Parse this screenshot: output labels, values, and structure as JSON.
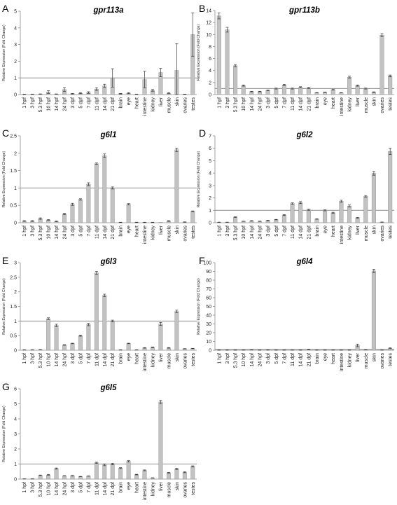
{
  "y_axis_label": "Relative Expression (Fold Change)",
  "colors": {
    "bar": "#c2c2c2",
    "bar_edge": "#8a8a8a",
    "ref_line": "#8c8c8c",
    "axis": "#8c8c8c"
  },
  "chart_data": [
    {
      "type": "bar",
      "panel": "A",
      "title": "gpr113a",
      "ylabel": "Relative Expression (Fold Change)",
      "ylim": [
        0,
        5
      ],
      "yticks": [
        0,
        1,
        2,
        3,
        4,
        5
      ],
      "reference_line": 1,
      "categories": [
        "1 hpf",
        "3 hpf",
        "5.3 hpf",
        "10 hpf",
        "14 hpf",
        "24 hpf",
        "3 dpf",
        "5 dpf",
        "7 dpf",
        "11 dpf",
        "14 dpf",
        "21 dpf",
        "brain",
        "eye",
        "heart",
        "intestine",
        "kidney",
        "liver",
        "muscle",
        "skin",
        "ovaries",
        "testes"
      ],
      "values": [
        0.02,
        0.02,
        0.03,
        0.15,
        0.03,
        0.3,
        0.05,
        0.08,
        0.12,
        0.33,
        0.52,
        1.0,
        0.05,
        0.08,
        0.02,
        0.9,
        0.25,
        1.32,
        0.08,
        1.45,
        0.02,
        3.6
      ],
      "errors": [
        0.01,
        0.01,
        0.01,
        0.08,
        0.01,
        0.12,
        0.02,
        0.03,
        0.05,
        0.08,
        0.1,
        0.55,
        0.02,
        0.03,
        0.01,
        0.5,
        0.05,
        0.25,
        0.03,
        1.6,
        0.01,
        1.3
      ]
    },
    {
      "type": "bar",
      "panel": "B",
      "title": "gpr113b",
      "ylabel": "Relative Expression (Fold Change)",
      "ylim": [
        0,
        14
      ],
      "yticks": [
        0,
        2,
        4,
        6,
        8,
        10,
        12,
        14
      ],
      "reference_line": 1,
      "categories": [
        "1 hpf",
        "3 hpf",
        "5.3 hpf",
        "10 hpf",
        "14 hpf",
        "24 hpf",
        "3 dpf",
        "5 dpf",
        "7 dpf",
        "11 dpf",
        "14 dpf",
        "21 dpf",
        "brain",
        "eye",
        "heart",
        "intestine",
        "kidney",
        "liver",
        "muscle",
        "skin",
        "ovaries",
        "testes"
      ],
      "values": [
        13.1,
        10.8,
        4.8,
        1.5,
        0.5,
        0.5,
        0.7,
        1.0,
        1.6,
        1.0,
        1.2,
        1.1,
        0.3,
        0.4,
        0.8,
        0.3,
        2.9,
        1.5,
        1.0,
        0.4,
        9.9,
        3.1
      ],
      "errors": [
        0.5,
        0.4,
        0.2,
        0.1,
        0.05,
        0.05,
        0.05,
        0.08,
        0.1,
        0.08,
        0.1,
        0.1,
        0.03,
        0.03,
        0.05,
        0.03,
        0.15,
        0.1,
        0.08,
        0.05,
        0.25,
        0.15
      ]
    },
    {
      "type": "bar",
      "panel": "C",
      "title": "g6l1",
      "ylabel": "Relative Expression (Fold Change)",
      "ylim": [
        0,
        2.5
      ],
      "yticks": [
        "0",
        "0.5",
        "1",
        "1.5",
        "2",
        "2.5"
      ],
      "reference_line": 1,
      "categories": [
        "1 hpf",
        "3 hpf",
        "5.3 hpf",
        "10 hpf",
        "14 hpf",
        "24 hpf",
        "3 dpf",
        "5 dpf",
        "7 dpf",
        "11 dpf",
        "14 dpf",
        "21 dpf",
        "brain",
        "eye",
        "heart",
        "intestine",
        "kidney",
        "liver",
        "muscle",
        "skin",
        "ovaries",
        "testes"
      ],
      "values": [
        0.05,
        0.05,
        0.12,
        0.08,
        0.04,
        0.25,
        0.53,
        0.67,
        1.11,
        1.7,
        1.93,
        1.0,
        0.01,
        0.53,
        0.01,
        0.01,
        0.01,
        0.0,
        0.05,
        2.1,
        0.02,
        0.33
      ],
      "errors": [
        0.01,
        0.01,
        0.02,
        0.01,
        0.01,
        0.02,
        0.03,
        0.02,
        0.04,
        0.02,
        0.05,
        0.03,
        0.005,
        0.02,
        0.005,
        0.005,
        0.005,
        0.0,
        0.01,
        0.05,
        0.005,
        0.01
      ]
    },
    {
      "type": "bar",
      "panel": "D",
      "title": "g6l2",
      "ylabel": "Relative Expression (Fold Change)",
      "ylim": [
        0,
        7
      ],
      "yticks": [
        0,
        1,
        2,
        3,
        4,
        5,
        6,
        7
      ],
      "reference_line": 1,
      "categories": [
        "1 hpf",
        "3 hpf",
        "5.3 hpf",
        "10 hpf",
        "14 hpf",
        "24 hpf",
        "3 dpf",
        "5 dpf",
        "7 dpf",
        "11 dpf",
        "14 dpf",
        "21 dpf",
        "brain",
        "eye",
        "heart",
        "intestine",
        "kidney",
        "liver",
        "muscle",
        "skin",
        "ovaries",
        "testes"
      ],
      "values": [
        0.04,
        0.04,
        0.45,
        0.12,
        0.15,
        0.12,
        0.18,
        0.25,
        0.62,
        1.55,
        1.62,
        1.05,
        0.3,
        1.0,
        0.8,
        1.73,
        1.35,
        0.4,
        2.13,
        3.98,
        0.05,
        5.75
      ],
      "errors": [
        0.01,
        0.01,
        0.03,
        0.01,
        0.02,
        0.01,
        0.02,
        0.02,
        0.04,
        0.06,
        0.08,
        0.05,
        0.02,
        0.04,
        0.04,
        0.08,
        0.08,
        0.03,
        0.06,
        0.15,
        0.01,
        0.25
      ]
    },
    {
      "type": "bar",
      "panel": "E",
      "title": "g6l3",
      "ylabel": "Relative Expression (Fold Change)",
      "ylim": [
        0,
        3
      ],
      "yticks": [
        "0",
        "0.5",
        "1",
        "1.5",
        "2",
        "2.5",
        "3"
      ],
      "reference_line": 1,
      "categories": [
        "1 hpf",
        "3 hpf",
        "5.3 hpf",
        "10 hpf",
        "14 hpf",
        "24 hpf",
        "3 dpf",
        "5 dpf",
        "7 dpf",
        "11 dpf",
        "14 dpf",
        "21 dpf",
        "brain",
        "eye",
        "heart",
        "intestine",
        "kidney",
        "liver",
        "muscle",
        "skin",
        "ovaries",
        "testes"
      ],
      "values": [
        0.01,
        0.01,
        0.02,
        1.08,
        0.85,
        0.18,
        0.23,
        0.5,
        0.88,
        2.65,
        1.88,
        1.0,
        0.01,
        0.23,
        0.01,
        0.08,
        0.1,
        0.9,
        0.08,
        1.33,
        0.05,
        0.06
      ],
      "errors": [
        0.005,
        0.005,
        0.005,
        0.03,
        0.04,
        0.01,
        0.01,
        0.02,
        0.04,
        0.05,
        0.04,
        0.03,
        0.005,
        0.01,
        0.005,
        0.01,
        0.01,
        0.05,
        0.01,
        0.04,
        0.005,
        0.005
      ]
    },
    {
      "type": "bar",
      "panel": "F",
      "title": "g6l4",
      "ylabel": "Relative Expression (Fold Change)",
      "ylim": [
        0,
        100
      ],
      "yticks": [
        0,
        10,
        20,
        30,
        40,
        50,
        60,
        70,
        80,
        90,
        100
      ],
      "reference_line": 1,
      "categories": [
        "1 hpf",
        "3 hpf",
        "5.3 hpf",
        "10 hpf",
        "14 hpf",
        "24 hpf",
        "3 dpf",
        "5 dpf",
        "7 dpf",
        "11 dpf",
        "14 dpf",
        "21 dpf",
        "brain",
        "eye",
        "heart",
        "intestine",
        "kidney",
        "liver",
        "muscle",
        "skin",
        "ovaries",
        "testes"
      ],
      "values": [
        0.1,
        0.1,
        0.1,
        0.1,
        0.3,
        0.1,
        0.2,
        0.1,
        0.1,
        0.1,
        0.1,
        1.0,
        0.1,
        0.1,
        0.1,
        0.1,
        0.1,
        5.5,
        0.3,
        90.5,
        0.1,
        2.2
      ],
      "errors": [
        0.05,
        0.05,
        0.05,
        0.05,
        0.1,
        0.05,
        0.05,
        0.05,
        0.05,
        0.05,
        0.05,
        0.3,
        0.05,
        0.05,
        0.05,
        0.05,
        0.05,
        1.5,
        0.1,
        2.0,
        0.05,
        0.5
      ]
    },
    {
      "type": "bar",
      "panel": "G",
      "title": "g6l5",
      "ylabel": "Relative Expression (Fold Change)",
      "ylim": [
        0,
        6
      ],
      "yticks": [
        0,
        1,
        2,
        3,
        4,
        5,
        6
      ],
      "reference_line": 1,
      "categories": [
        "1 hpf",
        "3 hpf",
        "5.3 hpf",
        "10 hpf",
        "14 hpf",
        "24 hpf",
        "3 dpf",
        "5 dpf",
        "7 dpf",
        "11 dpf",
        "14 dpf",
        "21 dpf",
        "brain",
        "eye",
        "heart",
        "intestine",
        "kidney",
        "liver",
        "muscle",
        "skin",
        "ovaries",
        "testes"
      ],
      "values": [
        0.01,
        0.01,
        0.25,
        0.28,
        0.7,
        0.22,
        0.22,
        0.17,
        0.2,
        1.08,
        0.95,
        1.0,
        0.73,
        1.18,
        0.3,
        0.58,
        0.08,
        5.12,
        0.42,
        0.68,
        0.45,
        0.84
      ],
      "errors": [
        0.005,
        0.005,
        0.02,
        0.02,
        0.04,
        0.01,
        0.02,
        0.01,
        0.01,
        0.04,
        0.06,
        0.05,
        0.03,
        0.05,
        0.02,
        0.03,
        0.01,
        0.1,
        0.03,
        0.04,
        0.03,
        0.04
      ]
    }
  ]
}
